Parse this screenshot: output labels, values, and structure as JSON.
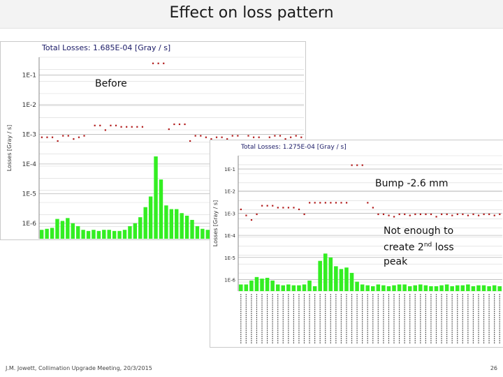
{
  "slide": {
    "title": "Effect on loss pattern",
    "footer_left": "J.M. Jowett, Collimation Upgrade Meeting, 20/3/2015",
    "page_number": "26"
  },
  "labels": {
    "before": "Before",
    "bump": "Bump -2.6 mm",
    "note_line1": "Not enough to",
    "note_line2_pre": "create 2",
    "note_line2_sup": "nd",
    "note_line2_post": " loss",
    "note_line3": "peak"
  },
  "colors": {
    "bar": "#33ee22",
    "dot": "#b01818",
    "grid": "#d8d8d8",
    "title_bg": "#f3f3f3"
  },
  "chart_data": [
    {
      "type": "bar",
      "title": "Total Losses: 1.685E-04 [Gray / s]",
      "ylabel": "Losses [Gray / s]",
      "yscale": "log",
      "ylim": [
        3e-07,
        0.4
      ],
      "ytick_labels": [
        "1E-1",
        "1E-2",
        "1E-3",
        "1E-4",
        "1E-5",
        "1E-6"
      ],
      "ytick_values": [
        0.1,
        0.01,
        0.001,
        0.0001,
        1e-05,
        1e-06
      ],
      "grid": true,
      "bar_series": {
        "name": "",
        "values": [
          6e-07,
          6.5e-07,
          7e-07,
          1.4e-06,
          1.2e-06,
          1.5e-06,
          1e-06,
          8e-07,
          6e-07,
          5.5e-07,
          6e-07,
          5.5e-07,
          6e-07,
          6e-07,
          5.5e-07,
          5.5e-07,
          6e-07,
          8e-07,
          1e-06,
          1.6e-06,
          3.5e-06,
          8e-06,
          0.00018,
          3e-05,
          4e-06,
          3e-06,
          3e-06,
          2.2e-06,
          1.8e-06,
          1.3e-06,
          8e-07,
          6.5e-07,
          6e-07
        ]
      },
      "dot_series": {
        "name": "",
        "values": [
          0.0008,
          0.0008,
          0.0008,
          0.0006,
          0.0009,
          0.0009,
          0.0007,
          0.0008,
          0.0009,
          null,
          0.002,
          0.002,
          0.0014,
          0.002,
          0.002,
          0.0018,
          0.0018,
          0.0018,
          0.0018,
          0.0018,
          null,
          0.25,
          0.25,
          0.25,
          0.0015,
          0.0022,
          0.0022,
          0.0022,
          0.0006,
          0.0009,
          0.0009,
          0.0008,
          0.0007,
          0.0008,
          0.0008,
          0.0007,
          0.0009,
          0.0009,
          0.0006,
          0.0009,
          0.0008,
          0.0008,
          0.0006,
          0.0008,
          0.0009,
          0.0009,
          0.0007,
          0.0008,
          0.0009,
          0.0008
        ]
      }
    },
    {
      "type": "bar",
      "title": "Total Losses: 1.275E-04 [Gray / s]",
      "ylabel": "Losses [Gray / s]",
      "yscale": "log",
      "ylim": [
        3e-07,
        0.4
      ],
      "ytick_labels": [
        "1E-1",
        "1E-2",
        "1E-3",
        "1E-4",
        "1E-5",
        "1E-6"
      ],
      "ytick_values": [
        0.1,
        0.01,
        0.001,
        0.0001,
        1e-05,
        1e-06
      ],
      "grid": true,
      "bar_series": {
        "name": "",
        "values": [
          6e-07,
          6e-07,
          9e-07,
          1.3e-06,
          1.1e-06,
          1.2e-06,
          9e-07,
          6e-07,
          5.5e-07,
          6e-07,
          5.5e-07,
          5.5e-07,
          6e-07,
          9e-07,
          5e-07,
          7e-06,
          1.5e-05,
          1e-05,
          4e-06,
          3e-06,
          3.5e-06,
          2e-06,
          8e-07,
          6e-07,
          5.5e-07,
          5e-07,
          6e-07,
          5.5e-07,
          5e-07,
          5.5e-07,
          6e-07,
          6e-07,
          5e-07,
          5.5e-07,
          6e-07,
          5.5e-07,
          5e-07,
          5e-07,
          5.5e-07,
          6e-07,
          5e-07,
          5.5e-07,
          5.5e-07,
          6e-07,
          5e-07,
          5.5e-07,
          5.5e-07,
          5e-07,
          5.5e-07,
          5e-07
        ]
      },
      "dot_series": {
        "name": "",
        "values": [
          0.0015,
          0.0008,
          0.0005,
          0.0009,
          0.0022,
          0.0022,
          0.0022,
          0.0018,
          0.0018,
          0.0018,
          0.0018,
          0.0015,
          0.0009,
          0.003,
          0.003,
          0.003,
          0.003,
          0.003,
          0.003,
          0.003,
          0.003,
          0.15,
          0.15,
          0.15,
          0.003,
          0.0018,
          0.0009,
          0.0009,
          0.0008,
          0.0007,
          0.0009,
          0.0009,
          0.0008,
          0.0009,
          0.0009,
          0.0009,
          0.0009,
          0.0007,
          0.0009,
          0.0009,
          0.0008,
          0.0009,
          0.0009,
          0.0008,
          0.0009,
          0.0008,
          0.0009,
          0.0009,
          0.0008,
          0.0009
        ]
      }
    }
  ]
}
